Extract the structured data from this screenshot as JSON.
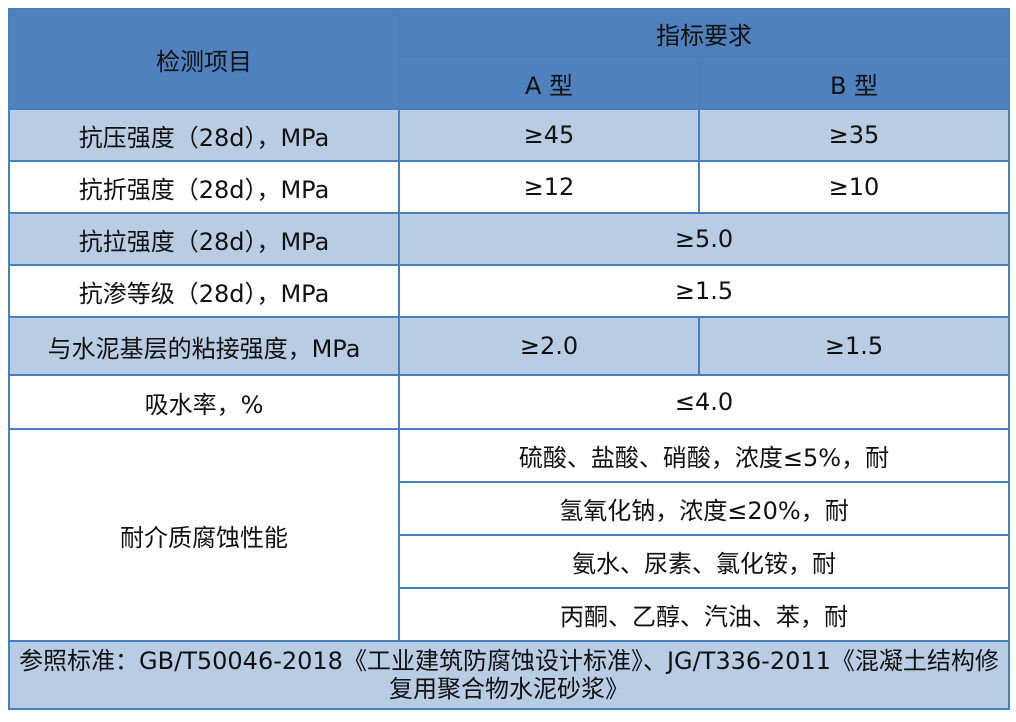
{
  "header": {
    "item": "检测项目",
    "spec": "指标要求",
    "type_a": "A 型",
    "type_b": "B 型"
  },
  "rows": [
    {
      "item": "抗压强度（28d），MPa",
      "a": "≥45",
      "b": "≥35"
    },
    {
      "item": "抗折强度（28d），MPa",
      "a": "≥12",
      "b": "≥10"
    },
    {
      "item": "抗拉强度（28d），MPa",
      "value": "≥5.0"
    },
    {
      "item": "抗渗等级（28d），MPa",
      "value": "≥1.5"
    },
    {
      "item": "与水泥基层的粘接强度，MPa",
      "a": "≥2.0",
      "b": "≥1.5"
    },
    {
      "item": "吸水率，%",
      "value": "≤4.0"
    }
  ],
  "corrosion": {
    "item": "耐介质腐蚀性能",
    "values": [
      "硫酸、盐酸、硝酸，浓度≤5%，耐",
      "氢氧化钠，浓度≤20%，耐",
      "氨水、尿素、氯化铵，耐",
      "丙酮、乙醇、汽油、苯，耐"
    ]
  },
  "note": "参照标准：GB/T50046-2018《工业建筑防腐蚀设计标准》、JG/T336-2011《混凝土结构修复用聚合物水泥砂浆》",
  "colors": {
    "header_bg": "#4e81bd",
    "shade_bg": "#b8cce4",
    "border": "#4a7fbf"
  }
}
